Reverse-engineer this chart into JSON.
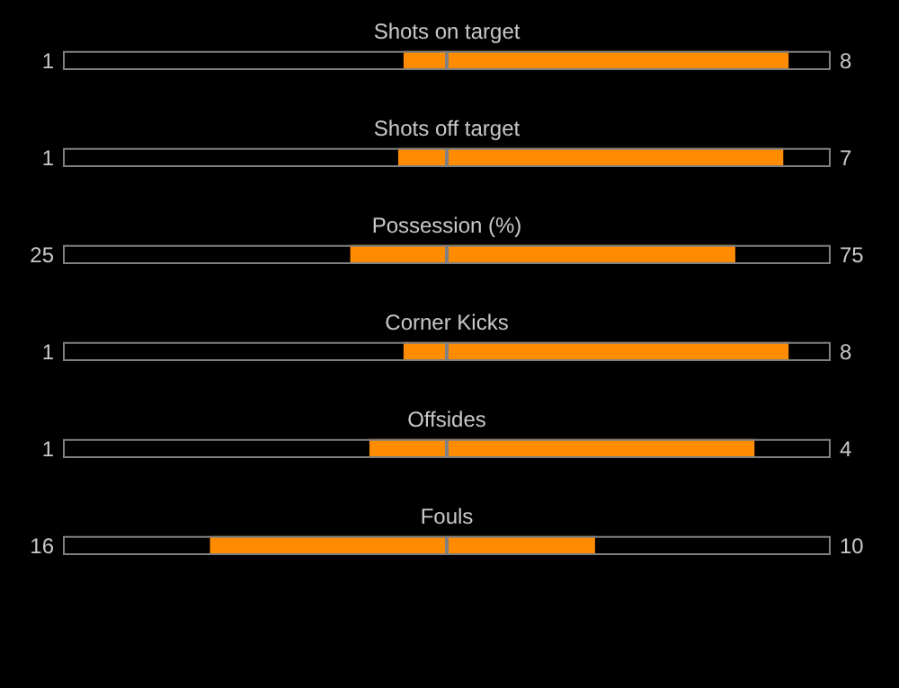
{
  "chart_data": [
    {
      "type": "other",
      "title": "Shots on target",
      "values": [
        1,
        8
      ],
      "color": "#ff8c00",
      "data_labels": true
    },
    {
      "type": "other",
      "title": "Shots off target",
      "values": [
        1,
        7
      ],
      "color": "#ff8c00",
      "data_labels": true
    },
    {
      "type": "other",
      "title": "Possession (%)",
      "values": [
        25,
        75
      ],
      "color": "#ff8c00",
      "data_labels": true
    },
    {
      "type": "other",
      "title": "Corner Kicks",
      "values": [
        1,
        8
      ],
      "color": "#ff8c00",
      "data_labels": true
    },
    {
      "type": "other",
      "title": "Offsides",
      "values": [
        1,
        4
      ],
      "color": "#ff8c00",
      "data_labels": true
    },
    {
      "type": "other",
      "title": "Fouls",
      "values": [
        16,
        10
      ],
      "color": "#ff8c00",
      "data_labels": true
    }
  ]
}
